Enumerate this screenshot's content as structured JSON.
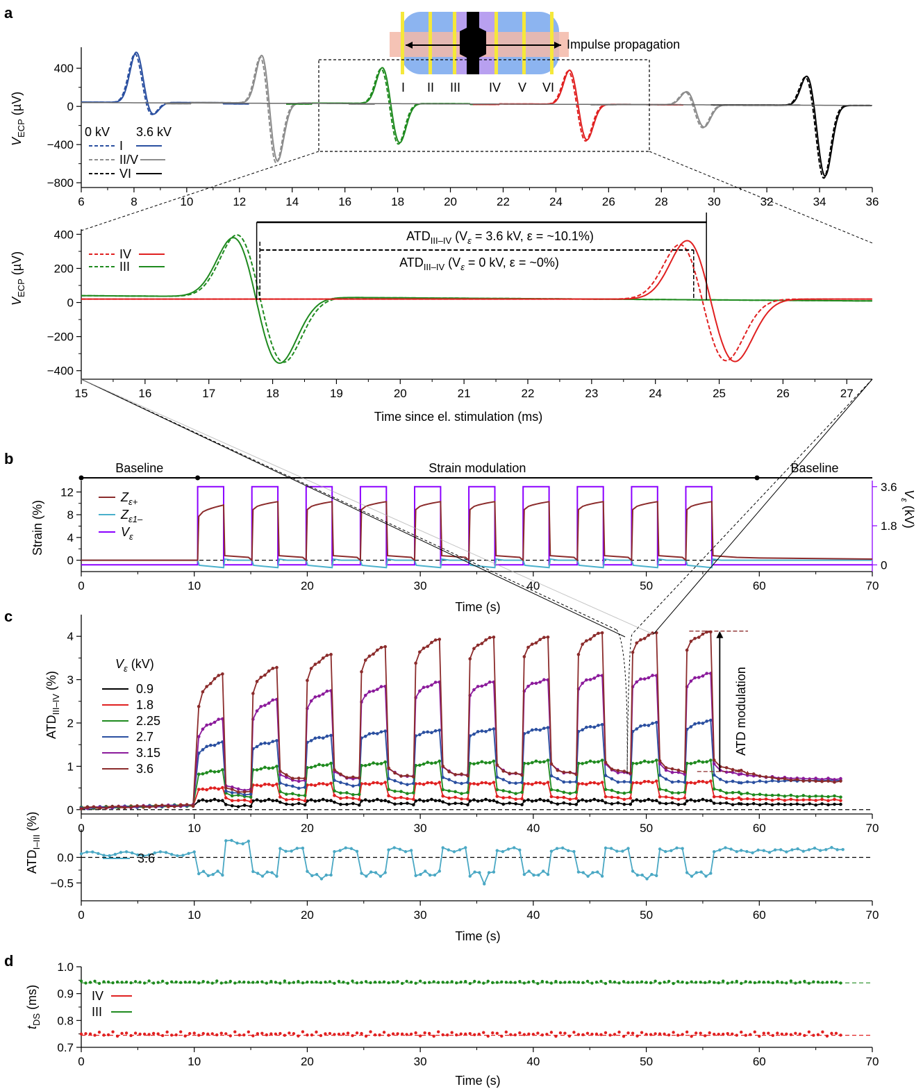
{
  "panel_labels": [
    "a",
    "b",
    "c",
    "d"
  ],
  "colors": {
    "I": "#2a4fa0",
    "II_V": "#8c8c8c",
    "III": "#1e8a1e",
    "IV": "#e02020",
    "VI": "#000000",
    "Ze_plus": "#8b2b2b",
    "Ze_minus": "#4ab0cc",
    "Ve": "#8b00ff",
    "ATD_I_III": "#4aa8c4"
  },
  "panel_a": {
    "inset_label": "Impulse propagation",
    "inset_numerals": [
      "I",
      "II",
      "III",
      "IV",
      "V",
      "VI"
    ],
    "legend_header_dashed": "0 kV",
    "legend_header_solid": "3.6 kV",
    "legend_rows": [
      "I",
      "II/V",
      "VI"
    ],
    "ylabel": "V",
    "ylabel_sub": "ECP",
    "ylabel_unit": " (µV)",
    "chart_data": {
      "type": "line",
      "xlim": [
        6,
        36
      ],
      "ylim": [
        -850,
        620
      ],
      "xticks": [
        6,
        8,
        10,
        12,
        14,
        16,
        18,
        20,
        22,
        24,
        26,
        28,
        30,
        32,
        34,
        36
      ],
      "yticks": [
        -800,
        -400,
        0,
        400
      ],
      "series": [
        {
          "name": "I",
          "condition": "3.6 kV",
          "peak_ms": 8.1,
          "peak_uV": 540,
          "trough_ms": 8.65,
          "trough_uV": -150
        },
        {
          "name": "II/V",
          "condition": "3.6 kV",
          "peak_ms": 12.9,
          "peak_uV": 580,
          "trough_ms": 13.4,
          "trough_uV": -670
        },
        {
          "name": "III",
          "condition": "3.6 kV",
          "peak_ms": 17.45,
          "peak_uV": 400,
          "trough_ms": 18.05,
          "trough_uV": -430
        },
        {
          "name": "IV",
          "condition": "3.6 kV",
          "peak_ms": 24.55,
          "peak_uV": 380,
          "trough_ms": 25.15,
          "trough_uV": -390
        },
        {
          "name": "II/V",
          "condition": "3.6 kV",
          "peak_ms": 29.0,
          "peak_uV": 150,
          "trough_ms": 29.6,
          "trough_uV": -240
        },
        {
          "name": "VI",
          "condition": "3.6 kV",
          "peak_ms": 33.55,
          "peak_uV": 330,
          "trough_ms": 34.2,
          "trough_uV": -750
        }
      ]
    }
  },
  "panel_a_zoom": {
    "xlabel": "Time since el. stimulation (ms)",
    "legend_rows": [
      "IV",
      "III"
    ],
    "atd_36": "ATD",
    "atd_sub": "III–IV",
    "atd_36_rest": " (V",
    "atd_36_ve": "ε",
    "atd_36_val": " = 3.6 kV, ε = ~10.1%)",
    "atd_0_val": " = 0 kV, ε = ~0%)",
    "chart_data": {
      "type": "line",
      "xlim": [
        15,
        27.4
      ],
      "ylim": [
        -450,
        430
      ],
      "xticks": [
        15,
        16,
        17,
        18,
        19,
        20,
        21,
        22,
        23,
        24,
        25,
        26,
        27
      ],
      "yticks": [
        -400,
        -200,
        0,
        200,
        400
      ],
      "series": [
        {
          "name": "III",
          "condition": "3.6 kV",
          "peak_ms": 17.45,
          "peak_uV": 400,
          "trough_ms": 18.05,
          "trough_uV": -430
        },
        {
          "name": "III",
          "condition": "0 kV",
          "peak_ms": 17.5,
          "peak_uV": 410,
          "trough_ms": 18.12,
          "trough_uV": -420
        },
        {
          "name": "IV",
          "condition": "3.6 kV",
          "peak_ms": 24.55,
          "peak_uV": 380,
          "trough_ms": 25.2,
          "trough_uV": -395
        },
        {
          "name": "IV",
          "condition": "0 kV",
          "peak_ms": 24.45,
          "peak_uV": 370,
          "trough_ms": 25.05,
          "trough_uV": -400
        }
      ],
      "atd_bars": [
        {
          "label": "3.6 kV",
          "x0": 17.75,
          "x1": 24.8
        },
        {
          "label": "0 kV",
          "x0": 17.8,
          "x1": 24.6
        }
      ]
    }
  },
  "panel_b": {
    "phase_labels": [
      "Baseline",
      "Strain modulation",
      "Baseline"
    ],
    "ylabel": "Strain (%)",
    "y2label": "V",
    "y2label_sub": "ε",
    "y2label_unit": " (kV)",
    "xlabel": "Time (s)",
    "legend": [
      {
        "main": "Z",
        "sub": "ε+"
      },
      {
        "main": "Z",
        "sub": "ε1–"
      },
      {
        "main": "V",
        "sub": "ε"
      }
    ],
    "chart_data": {
      "type": "line",
      "xlim": [
        0,
        70
      ],
      "ylim": [
        -2,
        14
      ],
      "y2lim": [
        -0.31,
        3.88
      ],
      "xticks": [
        0,
        10,
        20,
        30,
        40,
        50,
        60,
        70
      ],
      "yticks": [
        0,
        4,
        8,
        12
      ],
      "y2ticks": [
        0,
        1.8,
        3.6
      ],
      "phases": [
        {
          "label": "Baseline",
          "start": 0,
          "end": 10.3
        },
        {
          "label": "Strain modulation",
          "start": 10.3,
          "end": 59.8
        },
        {
          "label": "Baseline",
          "start": 59.8,
          "end": 70
        }
      ],
      "pulse_starts": [
        10.3,
        15.1,
        19.9,
        24.7,
        29.5,
        34.3,
        39.1,
        43.9,
        48.7,
        53.5
      ],
      "pulse_width_s": 2.3,
      "Ve_on_kV": 3.6,
      "Ze_plus_rise": [
        7.7,
        9.7
      ],
      "Ze_plus_rise_later": [
        8.9,
        10.3
      ],
      "Ze_minus_on": -1.3
    }
  },
  "panel_c": {
    "ylabel": "ATD",
    "ylabel_sub": "III–IV",
    "ylabel_unit": " (%)",
    "legend_title_main": "V",
    "legend_title_sub": "ε",
    "legend_title_unit": " (kV)",
    "legend": [
      "0.9",
      "1.8",
      "2.25",
      "2.7",
      "3.15",
      "3.6"
    ],
    "modulation_label": "ATD modulation",
    "xlabel": "Time (s)",
    "chart_data": {
      "type": "line",
      "xlim": [
        0,
        70
      ],
      "ylim": [
        -0.1,
        4.5
      ],
      "xticks": [
        0,
        10,
        20,
        30,
        40,
        50,
        60,
        70
      ],
      "yticks": [
        0,
        1,
        2,
        3,
        4
      ],
      "pulse_starts": [
        10.3,
        15.1,
        19.9,
        24.7,
        29.5,
        34.3,
        39.1,
        43.9,
        48.7,
        53.5
      ],
      "series": [
        {
          "name": "0.9",
          "on_start": [
            0.2,
            0.2,
            0.2,
            0.2,
            0.2,
            0.2,
            0.2,
            0.2,
            0.2,
            0.2
          ],
          "on_end": [
            0.22,
            0.22,
            0.22,
            0.22,
            0.22,
            0.22,
            0.22,
            0.22,
            0.22,
            0.22
          ],
          "off": [
            0.08,
            0.12,
            0.12,
            0.13,
            0.13,
            0.13,
            0.13,
            0.13,
            0.13,
            0.13
          ],
          "tail": 0.12
        },
        {
          "name": "1.8",
          "on_start": [
            0.45,
            0.55,
            0.55,
            0.58,
            0.58,
            0.58,
            0.58,
            0.58,
            0.6,
            0.6
          ],
          "on_end": [
            0.5,
            0.58,
            0.6,
            0.62,
            0.62,
            0.62,
            0.62,
            0.62,
            0.65,
            0.65
          ],
          "off": [
            0.2,
            0.22,
            0.25,
            0.25,
            0.25,
            0.25,
            0.25,
            0.25,
            0.25,
            0.25
          ],
          "tail": 0.22
        },
        {
          "name": "2.25",
          "on_start": [
            0.8,
            0.9,
            0.95,
            1.0,
            1.0,
            1.05,
            1.05,
            1.05,
            1.05,
            1.05
          ],
          "on_end": [
            0.9,
            0.98,
            1.05,
            1.08,
            1.1,
            1.1,
            1.12,
            1.12,
            1.12,
            1.12
          ],
          "off": [
            0.3,
            0.33,
            0.35,
            0.38,
            0.38,
            0.38,
            0.38,
            0.38,
            0.38,
            0.38
          ],
          "tail": 0.3
        },
        {
          "name": "2.7",
          "on_start": [
            1.3,
            1.4,
            1.55,
            1.65,
            1.7,
            1.7,
            1.75,
            1.8,
            1.8,
            1.85
          ],
          "on_end": [
            1.55,
            1.58,
            1.7,
            1.8,
            1.82,
            1.85,
            1.88,
            1.95,
            2.0,
            2.05
          ],
          "off": [
            0.35,
            0.5,
            0.55,
            0.58,
            0.6,
            0.6,
            0.62,
            0.62,
            0.62,
            0.62
          ],
          "tail": 0.68
        },
        {
          "name": "3.15",
          "on_start": [
            1.7,
            2.1,
            2.35,
            2.5,
            2.6,
            2.65,
            2.75,
            2.8,
            2.85,
            2.85
          ],
          "on_end": [
            2.1,
            2.55,
            2.75,
            2.85,
            2.95,
            2.95,
            3.0,
            3.1,
            3.1,
            3.15
          ],
          "off": [
            0.45,
            0.65,
            0.7,
            0.75,
            0.78,
            0.8,
            0.82,
            0.82,
            0.82,
            0.82
          ],
          "tail": 0.7
        },
        {
          "name": "3.6",
          "on_start": [
            2.4,
            2.7,
            3.0,
            3.2,
            3.4,
            3.5,
            3.55,
            3.6,
            3.65,
            3.7
          ],
          "on_end": [
            3.15,
            3.3,
            3.6,
            3.78,
            3.95,
            4.0,
            4.0,
            4.1,
            4.1,
            4.12
          ],
          "off": [
            0.4,
            0.7,
            0.72,
            0.75,
            0.78,
            0.8,
            0.82,
            0.85,
            0.88,
            0.9
          ],
          "tail": 0.63
        }
      ],
      "modulation_arrow": {
        "x": 56.5,
        "from": 0.88,
        "to": 4.12
      }
    }
  },
  "panel_c2": {
    "ylabel": "ATD",
    "ylabel_sub": "I–III",
    "ylabel_unit": " (%)",
    "legend": [
      "3.6"
    ],
    "xlabel": "Time (s)",
    "chart_data": {
      "type": "line",
      "xlim": [
        0,
        70
      ],
      "ylim": [
        -0.85,
        0.55
      ],
      "xticks": [
        0,
        10,
        20,
        30,
        40,
        50,
        60,
        70
      ],
      "yticks": [
        -0.5,
        0.0
      ],
      "series": [
        {
          "name": "3.6",
          "baseline": 0.07,
          "on_level": -0.32,
          "off_level": 0.15,
          "end_level": 0.21
        }
      ]
    }
  },
  "panel_d": {
    "ylabel": "t",
    "ylabel_sub": "DS",
    "ylabel_unit": " (ms)",
    "legend": [
      "IV",
      "III"
    ],
    "xlabel": "Time (s)",
    "chart_data": {
      "type": "scatter",
      "xlim": [
        0,
        70
      ],
      "ylim": [
        0.7,
        1.0
      ],
      "xticks": [
        0,
        10,
        20,
        30,
        40,
        50,
        60,
        70
      ],
      "yticks": [
        0.7,
        0.8,
        0.9,
        1.0
      ],
      "series": [
        {
          "name": "IV",
          "mean": 0.745,
          "spread": 0.015
        },
        {
          "name": "III",
          "mean": 0.94,
          "spread": 0.008
        }
      ]
    }
  }
}
